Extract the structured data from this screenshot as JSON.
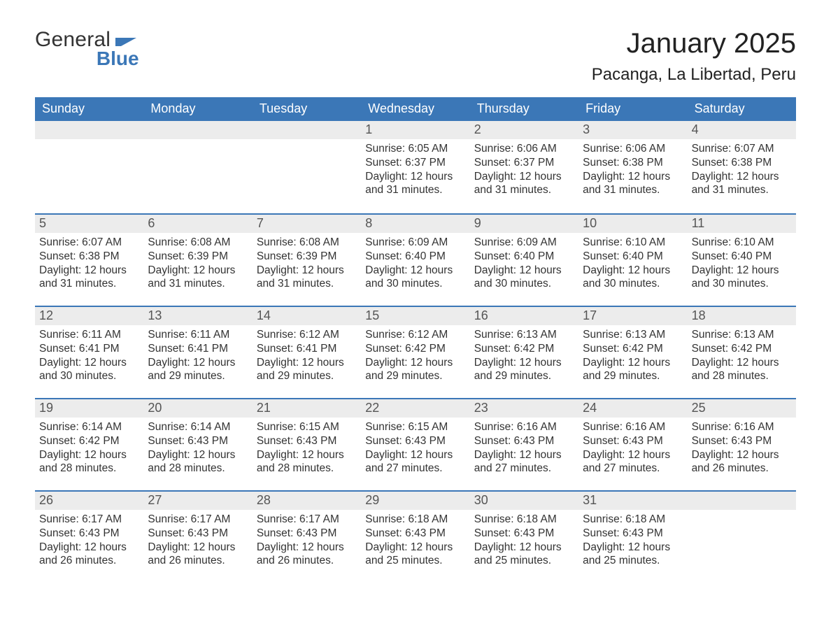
{
  "logo": {
    "text1": "General",
    "text2": "Blue"
  },
  "title": "January 2025",
  "location": "Pacanga, La Libertad, Peru",
  "colors": {
    "header_bg": "#3b77b7",
    "header_text": "#ffffff",
    "daynum_bg": "#ececec",
    "week_sep": "#3b77b7",
    "body_text": "#333333",
    "background": "#ffffff"
  },
  "typography": {
    "title_fontsize": 40,
    "location_fontsize": 24,
    "header_fontsize": 18,
    "daynum_fontsize": 18,
    "body_fontsize": 15.5
  },
  "layout": {
    "columns": 7,
    "rows": 5,
    "start_weekday": "Sunday"
  },
  "day_headers": [
    "Sunday",
    "Monday",
    "Tuesday",
    "Wednesday",
    "Thursday",
    "Friday",
    "Saturday"
  ],
  "weeks": [
    [
      null,
      null,
      null,
      {
        "n": "1",
        "sunrise": "Sunrise: 6:05 AM",
        "sunset": "Sunset: 6:37 PM",
        "d1": "Daylight: 12 hours",
        "d2": "and 31 minutes."
      },
      {
        "n": "2",
        "sunrise": "Sunrise: 6:06 AM",
        "sunset": "Sunset: 6:37 PM",
        "d1": "Daylight: 12 hours",
        "d2": "and 31 minutes."
      },
      {
        "n": "3",
        "sunrise": "Sunrise: 6:06 AM",
        "sunset": "Sunset: 6:38 PM",
        "d1": "Daylight: 12 hours",
        "d2": "and 31 minutes."
      },
      {
        "n": "4",
        "sunrise": "Sunrise: 6:07 AM",
        "sunset": "Sunset: 6:38 PM",
        "d1": "Daylight: 12 hours",
        "d2": "and 31 minutes."
      }
    ],
    [
      {
        "n": "5",
        "sunrise": "Sunrise: 6:07 AM",
        "sunset": "Sunset: 6:38 PM",
        "d1": "Daylight: 12 hours",
        "d2": "and 31 minutes."
      },
      {
        "n": "6",
        "sunrise": "Sunrise: 6:08 AM",
        "sunset": "Sunset: 6:39 PM",
        "d1": "Daylight: 12 hours",
        "d2": "and 31 minutes."
      },
      {
        "n": "7",
        "sunrise": "Sunrise: 6:08 AM",
        "sunset": "Sunset: 6:39 PM",
        "d1": "Daylight: 12 hours",
        "d2": "and 31 minutes."
      },
      {
        "n": "8",
        "sunrise": "Sunrise: 6:09 AM",
        "sunset": "Sunset: 6:40 PM",
        "d1": "Daylight: 12 hours",
        "d2": "and 30 minutes."
      },
      {
        "n": "9",
        "sunrise": "Sunrise: 6:09 AM",
        "sunset": "Sunset: 6:40 PM",
        "d1": "Daylight: 12 hours",
        "d2": "and 30 minutes."
      },
      {
        "n": "10",
        "sunrise": "Sunrise: 6:10 AM",
        "sunset": "Sunset: 6:40 PM",
        "d1": "Daylight: 12 hours",
        "d2": "and 30 minutes."
      },
      {
        "n": "11",
        "sunrise": "Sunrise: 6:10 AM",
        "sunset": "Sunset: 6:40 PM",
        "d1": "Daylight: 12 hours",
        "d2": "and 30 minutes."
      }
    ],
    [
      {
        "n": "12",
        "sunrise": "Sunrise: 6:11 AM",
        "sunset": "Sunset: 6:41 PM",
        "d1": "Daylight: 12 hours",
        "d2": "and 30 minutes."
      },
      {
        "n": "13",
        "sunrise": "Sunrise: 6:11 AM",
        "sunset": "Sunset: 6:41 PM",
        "d1": "Daylight: 12 hours",
        "d2": "and 29 minutes."
      },
      {
        "n": "14",
        "sunrise": "Sunrise: 6:12 AM",
        "sunset": "Sunset: 6:41 PM",
        "d1": "Daylight: 12 hours",
        "d2": "and 29 minutes."
      },
      {
        "n": "15",
        "sunrise": "Sunrise: 6:12 AM",
        "sunset": "Sunset: 6:42 PM",
        "d1": "Daylight: 12 hours",
        "d2": "and 29 minutes."
      },
      {
        "n": "16",
        "sunrise": "Sunrise: 6:13 AM",
        "sunset": "Sunset: 6:42 PM",
        "d1": "Daylight: 12 hours",
        "d2": "and 29 minutes."
      },
      {
        "n": "17",
        "sunrise": "Sunrise: 6:13 AM",
        "sunset": "Sunset: 6:42 PM",
        "d1": "Daylight: 12 hours",
        "d2": "and 29 minutes."
      },
      {
        "n": "18",
        "sunrise": "Sunrise: 6:13 AM",
        "sunset": "Sunset: 6:42 PM",
        "d1": "Daylight: 12 hours",
        "d2": "and 28 minutes."
      }
    ],
    [
      {
        "n": "19",
        "sunrise": "Sunrise: 6:14 AM",
        "sunset": "Sunset: 6:42 PM",
        "d1": "Daylight: 12 hours",
        "d2": "and 28 minutes."
      },
      {
        "n": "20",
        "sunrise": "Sunrise: 6:14 AM",
        "sunset": "Sunset: 6:43 PM",
        "d1": "Daylight: 12 hours",
        "d2": "and 28 minutes."
      },
      {
        "n": "21",
        "sunrise": "Sunrise: 6:15 AM",
        "sunset": "Sunset: 6:43 PM",
        "d1": "Daylight: 12 hours",
        "d2": "and 28 minutes."
      },
      {
        "n": "22",
        "sunrise": "Sunrise: 6:15 AM",
        "sunset": "Sunset: 6:43 PM",
        "d1": "Daylight: 12 hours",
        "d2": "and 27 minutes."
      },
      {
        "n": "23",
        "sunrise": "Sunrise: 6:16 AM",
        "sunset": "Sunset: 6:43 PM",
        "d1": "Daylight: 12 hours",
        "d2": "and 27 minutes."
      },
      {
        "n": "24",
        "sunrise": "Sunrise: 6:16 AM",
        "sunset": "Sunset: 6:43 PM",
        "d1": "Daylight: 12 hours",
        "d2": "and 27 minutes."
      },
      {
        "n": "25",
        "sunrise": "Sunrise: 6:16 AM",
        "sunset": "Sunset: 6:43 PM",
        "d1": "Daylight: 12 hours",
        "d2": "and 26 minutes."
      }
    ],
    [
      {
        "n": "26",
        "sunrise": "Sunrise: 6:17 AM",
        "sunset": "Sunset: 6:43 PM",
        "d1": "Daylight: 12 hours",
        "d2": "and 26 minutes."
      },
      {
        "n": "27",
        "sunrise": "Sunrise: 6:17 AM",
        "sunset": "Sunset: 6:43 PM",
        "d1": "Daylight: 12 hours",
        "d2": "and 26 minutes."
      },
      {
        "n": "28",
        "sunrise": "Sunrise: 6:17 AM",
        "sunset": "Sunset: 6:43 PM",
        "d1": "Daylight: 12 hours",
        "d2": "and 26 minutes."
      },
      {
        "n": "29",
        "sunrise": "Sunrise: 6:18 AM",
        "sunset": "Sunset: 6:43 PM",
        "d1": "Daylight: 12 hours",
        "d2": "and 25 minutes."
      },
      {
        "n": "30",
        "sunrise": "Sunrise: 6:18 AM",
        "sunset": "Sunset: 6:43 PM",
        "d1": "Daylight: 12 hours",
        "d2": "and 25 minutes."
      },
      {
        "n": "31",
        "sunrise": "Sunrise: 6:18 AM",
        "sunset": "Sunset: 6:43 PM",
        "d1": "Daylight: 12 hours",
        "d2": "and 25 minutes."
      },
      null
    ]
  ]
}
